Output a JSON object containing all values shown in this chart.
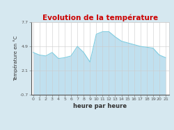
{
  "title": "Evolution de la température",
  "title_color": "#cc0000",
  "xlabel": "heure par heure",
  "ylabel": "Température en °C",
  "background_color": "#d6e8f0",
  "plot_bg_color": "#ffffff",
  "line_color": "#7fcce0",
  "fill_color": "#c0e0ef",
  "ylim": [
    -0.7,
    7.7
  ],
  "yticks": [
    -0.7,
    2.1,
    4.9,
    7.7
  ],
  "hours": [
    0,
    1,
    2,
    3,
    4,
    5,
    6,
    7,
    8,
    9,
    10,
    11,
    12,
    13,
    14,
    15,
    16,
    17,
    18,
    19,
    20,
    21
  ],
  "values": [
    4.2,
    3.9,
    3.8,
    4.2,
    3.5,
    3.6,
    3.8,
    4.9,
    4.2,
    3.1,
    6.3,
    6.6,
    6.6,
    6.0,
    5.5,
    5.3,
    5.1,
    4.9,
    4.8,
    4.7,
    3.9,
    3.6
  ],
  "title_fontsize": 7.5,
  "xlabel_fontsize": 6.0,
  "ylabel_fontsize": 5.0,
  "tick_fontsize": 4.5
}
